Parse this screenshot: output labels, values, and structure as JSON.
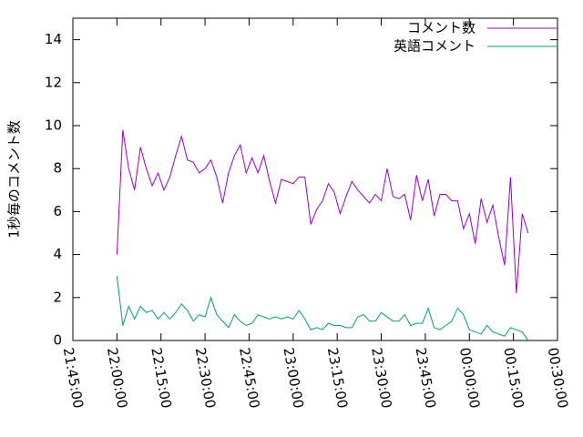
{
  "chart_data": {
    "type": "line",
    "ylabel": "1秒毎のコメント数",
    "x": [
      79200,
      79320,
      79440,
      79560,
      79680,
      79800,
      79920,
      80040,
      80160,
      80280,
      80400,
      80520,
      80640,
      80760,
      80880,
      81000,
      81120,
      81240,
      81360,
      81480,
      81600,
      81720,
      81840,
      81960,
      82080,
      82200,
      82320,
      82440,
      82560,
      82680,
      82800,
      82920,
      83040,
      83160,
      83280,
      83400,
      83520,
      83640,
      83760,
      83880,
      84000,
      84120,
      84240,
      84360,
      84480,
      84600,
      84720,
      84840,
      84960,
      85080,
      85200,
      85320,
      85440,
      85560,
      85680,
      85800,
      85920,
      86040,
      86160,
      86280,
      86400,
      86520,
      86640,
      86760,
      86880,
      87000,
      87120,
      87240,
      87360,
      87480,
      87600
    ],
    "series": [
      {
        "name": "コメント数",
        "color": "#9400d3",
        "values": [
          4.0,
          9.8,
          8.0,
          7.0,
          9.0,
          8.0,
          7.2,
          7.8,
          7.0,
          7.6,
          8.6,
          9.5,
          8.4,
          8.3,
          7.8,
          8.0,
          8.4,
          7.6,
          6.4,
          7.8,
          8.6,
          9.1,
          7.8,
          8.5,
          7.8,
          8.6,
          7.4,
          6.4,
          7.5,
          7.4,
          7.3,
          7.6,
          7.6,
          5.4,
          6.1,
          6.5,
          7.3,
          6.9,
          5.9,
          6.7,
          7.4,
          7.0,
          6.7,
          6.4,
          6.8,
          6.5,
          8.0,
          6.7,
          6.6,
          6.8,
          5.6,
          7.7,
          6.5,
          7.5,
          5.8,
          6.8,
          6.8,
          6.5,
          6.5,
          5.2,
          5.9,
          4.5,
          6.6,
          5.5,
          6.3,
          4.8,
          3.5,
          7.6,
          2.2,
          5.9,
          5.0
        ]
      },
      {
        "name": "英語コメント",
        "color": "#009e73",
        "values": [
          3.0,
          0.7,
          1.6,
          1.0,
          1.6,
          1.3,
          1.4,
          1.0,
          1.3,
          1.0,
          1.3,
          1.7,
          1.4,
          0.9,
          1.2,
          1.1,
          2.0,
          1.2,
          0.9,
          0.6,
          1.2,
          0.9,
          0.7,
          0.8,
          1.2,
          1.1,
          1.0,
          1.1,
          1.0,
          1.1,
          1.0,
          1.4,
          1.0,
          0.5,
          0.6,
          0.5,
          0.8,
          0.7,
          0.7,
          0.6,
          0.6,
          1.1,
          1.2,
          0.9,
          0.9,
          1.3,
          1.1,
          0.9,
          0.9,
          1.2,
          0.7,
          0.8,
          0.8,
          1.5,
          0.6,
          0.5,
          0.7,
          0.9,
          1.5,
          1.2,
          0.5,
          0.4,
          0.3,
          0.7,
          0.4,
          0.3,
          0.2,
          0.6,
          0.5,
          0.4,
          0.0
        ]
      }
    ],
    "xlim": [
      78300,
      88200
    ],
    "xticks": [
      {
        "value": 78300,
        "label": "21:45:00"
      },
      {
        "value": 79200,
        "label": "22:00:00"
      },
      {
        "value": 80100,
        "label": "22:15:00"
      },
      {
        "value": 81000,
        "label": "22:30:00"
      },
      {
        "value": 81900,
        "label": "22:45:00"
      },
      {
        "value": 82800,
        "label": "23:00:00"
      },
      {
        "value": 83700,
        "label": "23:15:00"
      },
      {
        "value": 84600,
        "label": "23:30:00"
      },
      {
        "value": 85500,
        "label": "23:45:00"
      },
      {
        "value": 86400,
        "label": "00:00:00"
      },
      {
        "value": 87300,
        "label": "00:15:00"
      },
      {
        "value": 88200,
        "label": "00:30:00"
      }
    ],
    "ylim": [
      0,
      15
    ],
    "yticks": [
      0,
      2,
      4,
      6,
      8,
      10,
      12,
      14
    ],
    "legend": "top-right"
  }
}
